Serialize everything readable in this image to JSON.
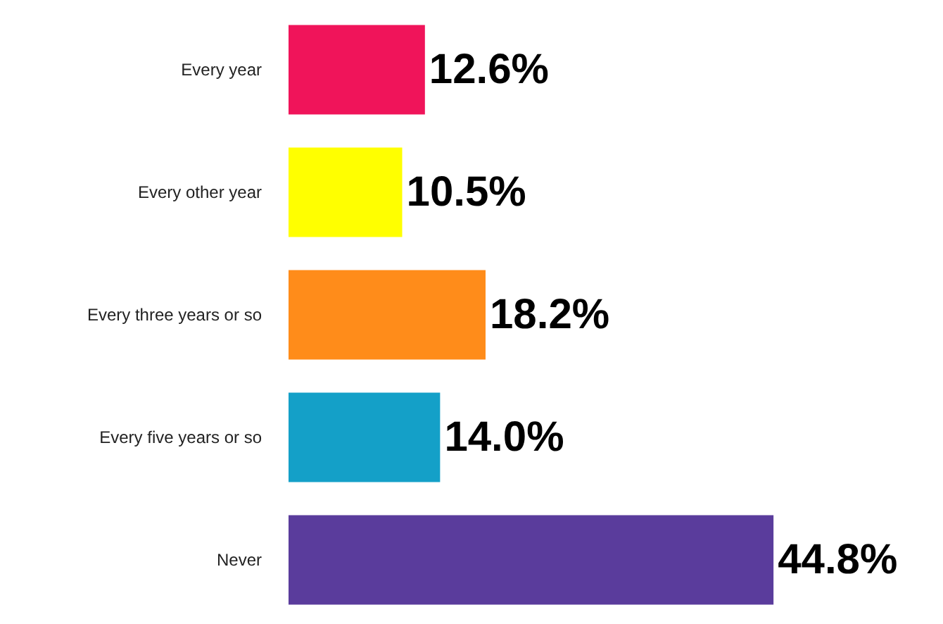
{
  "chart_data": {
    "type": "bar",
    "orientation": "horizontal",
    "categories": [
      "Every year",
      "Every other year",
      "Every three years or so",
      "Every five years or so",
      "Never"
    ],
    "values": [
      12.6,
      10.5,
      18.2,
      14.0,
      44.8
    ],
    "colors": [
      "#f0145a",
      "#ffff00",
      "#ff8c1a",
      "#14a0c8",
      "#5a3c9c"
    ],
    "value_labels": [
      "12.6%",
      "10.5%",
      "18.2%",
      "14.0%",
      "44.8%"
    ]
  }
}
